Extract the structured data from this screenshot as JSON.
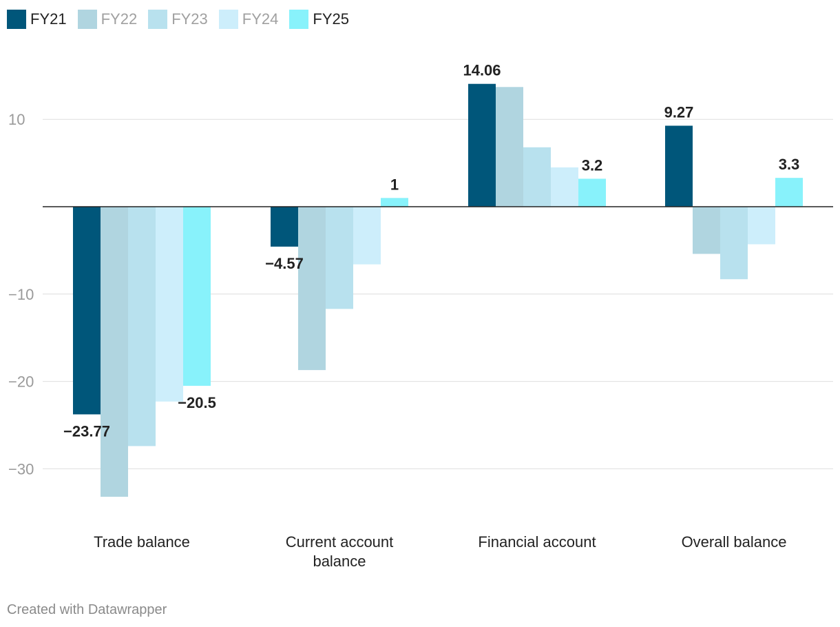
{
  "chart_data": {
    "type": "bar",
    "categories": [
      "Trade balance",
      "Current account balance",
      "Financial account",
      "Overall balance"
    ],
    "category_lines": [
      [
        "Trade balance"
      ],
      [
        "Current account",
        "balance"
      ],
      [
        "Financial account"
      ],
      [
        "Overall balance"
      ]
    ],
    "series": [
      {
        "name": "FY21",
        "color": "#00567a",
        "values": [
          -23.77,
          -4.57,
          14.06,
          9.27
        ],
        "labels": [
          "-23.77",
          "-4.57",
          "14.06",
          "9.27"
        ]
      },
      {
        "name": "FY22",
        "color": "#b0d5e0",
        "values": [
          -33.2,
          -18.7,
          13.7,
          -5.4
        ],
        "labels": [
          null,
          null,
          null,
          null
        ]
      },
      {
        "name": "FY23",
        "color": "#b8e1ee",
        "values": [
          -27.4,
          -11.7,
          6.8,
          -8.3
        ],
        "labels": [
          null,
          null,
          null,
          null
        ]
      },
      {
        "name": "FY24",
        "color": "#cdeefb",
        "values": [
          -22.3,
          -6.6,
          4.5,
          -4.3
        ],
        "labels": [
          null,
          null,
          null,
          null
        ]
      },
      {
        "name": "FY25",
        "color": "#88f2fb",
        "values": [
          -20.5,
          1,
          3.2,
          3.3
        ],
        "labels": [
          "-20.5",
          "1",
          "3.2",
          "3.3"
        ]
      }
    ],
    "legend": [
      {
        "name": "FY21",
        "color": "#00567a",
        "text_color": "#222222"
      },
      {
        "name": "FY22",
        "color": "#b0d5e0",
        "text_color": "#a0a0a0"
      },
      {
        "name": "FY23",
        "color": "#b8e1ee",
        "text_color": "#a0a0a0"
      },
      {
        "name": "FY24",
        "color": "#cdeefb",
        "text_color": "#a0a0a0"
      },
      {
        "name": "FY25",
        "color": "#88f2fb",
        "text_color": "#222222"
      }
    ],
    "yticks": [
      10,
      -10,
      -20,
      -30
    ],
    "ytick_labels": [
      "10",
      "−10",
      "−20",
      "−30"
    ],
    "ylim": [
      -36,
      16
    ],
    "legend_position": "top-left",
    "xlabel": "",
    "ylabel": "",
    "title": ""
  },
  "footer": {
    "credit": "Created with Datawrapper"
  }
}
